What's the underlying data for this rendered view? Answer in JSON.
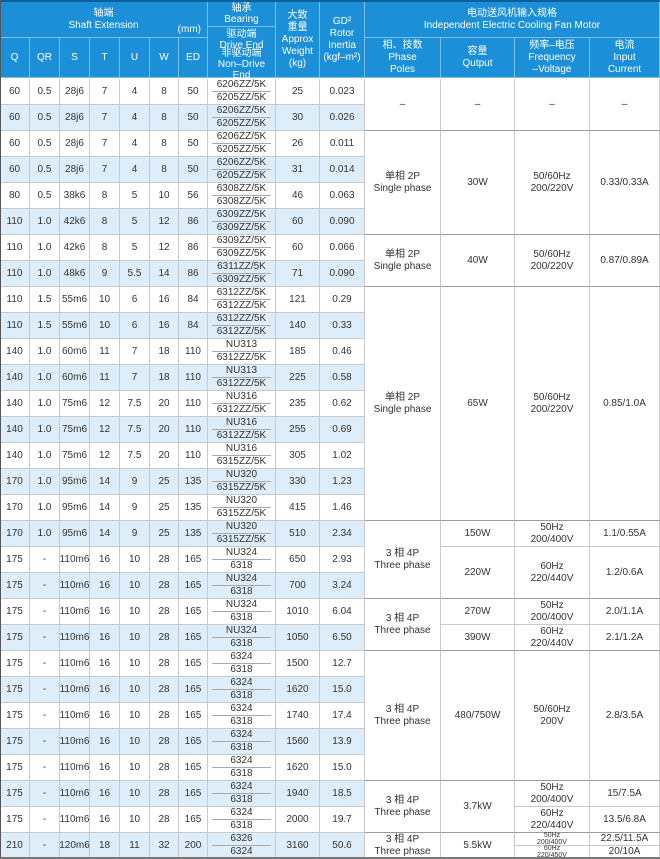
{
  "header": {
    "shaft_cn": "轴端",
    "shaft_en": "Shaft Extension",
    "unit": "(mm)",
    "columns": [
      "Q",
      "QR",
      "S",
      "T",
      "U",
      "W",
      "ED"
    ],
    "bearing_cn": "轴承",
    "bearing_en": "Bearing",
    "drive_cn": "驱动端",
    "drive_en": "Drive End",
    "nondrive_cn": "非驱动端",
    "nondrive_en": "Non–Drive End",
    "weight_cn": [
      "大致",
      "重量"
    ],
    "weight_en": [
      "Approx",
      "Weight",
      "(kg)"
    ],
    "gd2": [
      "GD²",
      "Rotor",
      "Inertia",
      "(kgf–m²)"
    ],
    "motor_cn": "电动送风机输入规格",
    "motor_en": "Independent Electric Cooling Fan Motor",
    "motor_columns": [
      {
        "cn": "相、技数",
        "en": [
          "Phase",
          "Poles"
        ]
      },
      {
        "cn": "容量",
        "en": [
          "Qutput"
        ]
      },
      {
        "cn": "频率–电压",
        "en": [
          "Frequency",
          "–Voltage"
        ]
      },
      {
        "cn": "电流",
        "en": [
          "Input",
          "Current"
        ]
      }
    ]
  },
  "rows": [
    [
      "60",
      "0.5",
      "28j6",
      "7",
      "4",
      "8",
      "50",
      "6206ZZ/5K",
      "6205ZZ/5K",
      "25",
      "0.023"
    ],
    [
      "60",
      "0.5",
      "28j6",
      "7",
      "4",
      "8",
      "50",
      "6206ZZ/5K",
      "6205ZZ/5K",
      "30",
      "0.026"
    ],
    [
      "60",
      "0.5",
      "28j6",
      "7",
      "4",
      "8",
      "50",
      "6206ZZ/5K",
      "6205ZZ/5K",
      "26",
      "0.011"
    ],
    [
      "60",
      "0.5",
      "28j6",
      "7",
      "4",
      "8",
      "50",
      "6206ZZ/5K",
      "6205ZZ/5K",
      "31",
      "0.014"
    ],
    [
      "80",
      "0.5",
      "38k6",
      "8",
      "5",
      "10",
      "56",
      "6308ZZ/5K",
      "6308ZZ/5K",
      "46",
      "0.063"
    ],
    [
      "110",
      "1.0",
      "42k6",
      "8",
      "5",
      "12",
      "86",
      "6309ZZ/5K",
      "6309ZZ/5K",
      "60",
      "0.090"
    ],
    [
      "110",
      "1.0",
      "42k6",
      "8",
      "5",
      "12",
      "86",
      "6309ZZ/5K",
      "6309ZZ/5K",
      "60",
      "0.066"
    ],
    [
      "110",
      "1.0",
      "48k6",
      "9",
      "5.5",
      "14",
      "86",
      "6311ZZ/5K",
      "6309ZZ/5K",
      "71",
      "0.090"
    ],
    [
      "110",
      "1.5",
      "55m6",
      "10",
      "6",
      "16",
      "84",
      "6312ZZ/5K",
      "6312ZZ/5K",
      "121",
      "0.29"
    ],
    [
      "110",
      "1.5",
      "55m6",
      "10",
      "6",
      "16",
      "84",
      "6312ZZ/5K",
      "6312ZZ/5K",
      "140",
      "0.33"
    ],
    [
      "140",
      "1.0",
      "60m6",
      "11",
      "7",
      "18",
      "110",
      "NU313",
      "6312ZZ/5K",
      "185",
      "0.46"
    ],
    [
      "140",
      "1.0",
      "60m6",
      "11",
      "7",
      "18",
      "110",
      "NU313",
      "6312ZZ/5K",
      "225",
      "0.58"
    ],
    [
      "140",
      "1.0",
      "75m6",
      "12",
      "7.5",
      "20",
      "110",
      "NU316",
      "6312ZZ/5K",
      "235",
      "0.62"
    ],
    [
      "140",
      "1.0",
      "75m6",
      "12",
      "7.5",
      "20",
      "110",
      "NU316",
      "6312ZZ/5K",
      "255",
      "0.69"
    ],
    [
      "140",
      "1.0",
      "75m6",
      "12",
      "7.5",
      "20",
      "110",
      "NU316",
      "6315ZZ/5K",
      "305",
      "1.02"
    ],
    [
      "170",
      "1.0",
      "95m6",
      "14",
      "9",
      "25",
      "135",
      "NU320",
      "6315ZZ/5K",
      "330",
      "1.23"
    ],
    [
      "170",
      "1.0",
      "95m6",
      "14",
      "9",
      "25",
      "135",
      "NU320",
      "6315ZZ/5K",
      "415",
      "1.46"
    ],
    [
      "170",
      "1.0",
      "95m6",
      "14",
      "9",
      "25",
      "135",
      "NU320",
      "6315ZZ/5K",
      "510",
      "2.34"
    ],
    [
      "175",
      "-",
      "110m6",
      "16",
      "10",
      "28",
      "165",
      "NU324",
      "6318",
      "650",
      "2.93"
    ],
    [
      "175",
      "-",
      "110m6",
      "16",
      "10",
      "28",
      "165",
      "NU324",
      "6318",
      "700",
      "3.24"
    ],
    [
      "175",
      "-",
      "110m6",
      "16",
      "10",
      "28",
      "165",
      "NU324",
      "6318",
      "1010",
      "6.04"
    ],
    [
      "175",
      "-",
      "110m6",
      "16",
      "10",
      "28",
      "165",
      "NU324",
      "6318",
      "1050",
      "6.50"
    ],
    [
      "175",
      "-",
      "110m6",
      "16",
      "10",
      "28",
      "165",
      "6324",
      "6318",
      "1500",
      "12.7"
    ],
    [
      "175",
      "-",
      "110m6",
      "16",
      "10",
      "28",
      "165",
      "6324",
      "6318",
      "1620",
      "15.0"
    ],
    [
      "175",
      "-",
      "110m6",
      "16",
      "10",
      "28",
      "165",
      "6324",
      "6318",
      "1740",
      "17.4"
    ],
    [
      "175",
      "-",
      "110m6",
      "16",
      "10",
      "28",
      "165",
      "6324",
      "6318",
      "1560",
      "13.9"
    ],
    [
      "175",
      "-",
      "110m6",
      "16",
      "10",
      "28",
      "165",
      "6324",
      "6318",
      "1620",
      "15.0"
    ],
    [
      "175",
      "-",
      "110m6",
      "16",
      "10",
      "28",
      "165",
      "6324",
      "6318",
      "1940",
      "18.5"
    ],
    [
      "175",
      "-",
      "110m6",
      "16",
      "10",
      "28",
      "165",
      "6324",
      "6318",
      "2000",
      "19.7"
    ],
    [
      "210",
      "-",
      "120m6",
      "18",
      "11",
      "32",
      "200",
      "6326",
      "6324",
      "3160",
      "50.6"
    ]
  ],
  "motor_groups": [
    {
      "rows": 2,
      "phase_cn": "–",
      "phase_en": "",
      "output": "–",
      "subs": [
        {
          "rows": 2,
          "freq": "–",
          "voltage": "",
          "current": "–"
        }
      ]
    },
    {
      "rows": 4,
      "phase_cn": "单相 2P",
      "phase_en": "Single phase",
      "output": "30W",
      "subs": [
        {
          "rows": 4,
          "freq": "50/60Hz",
          "voltage": "200/220V",
          "current": "0.33/0.33A"
        }
      ]
    },
    {
      "rows": 2,
      "phase_cn": "单相 2P",
      "phase_en": "Single phase",
      "output": "40W",
      "subs": [
        {
          "rows": 2,
          "freq": "50/60Hz",
          "voltage": "200/220V",
          "current": "0.87/0.89A"
        }
      ]
    },
    {
      "rows": 9,
      "phase_cn": "单相 2P",
      "phase_en": "Single phase",
      "output": "65W",
      "subs": [
        {
          "rows": 9,
          "freq": "50/60Hz",
          "voltage": "200/220V",
          "current": "0.85/1.0A"
        }
      ]
    },
    {
      "rows": 3,
      "phase_cn": "3 相 4P",
      "phase_en": "Three phase",
      "subs": [
        {
          "rows": 1,
          "output": "150W",
          "freq": "50Hz",
          "voltage": "200/400V",
          "current": "1.1/0.55A"
        },
        {
          "rows": 2,
          "output": "220W",
          "freq": "60Hz",
          "voltage": "220/440V",
          "current": "1.2/0.6A"
        }
      ]
    },
    {
      "rows": 2,
      "phase_cn": "3 相 4P",
      "phase_en": "Three phase",
      "subs": [
        {
          "rows": 1,
          "output": "270W",
          "freq": "50Hz",
          "voltage": "200/400V",
          "current": "2.0/1.1A"
        },
        {
          "rows": 1,
          "output": "390W",
          "freq": "60Hz",
          "voltage": "220/440V",
          "current": "2.1/1.2A"
        }
      ]
    },
    {
      "rows": 5,
      "phase_cn": "3 相 4P",
      "phase_en": "Three phase",
      "output": "480/750W",
      "subs": [
        {
          "rows": 5,
          "freq": "50/60Hz",
          "voltage": "200V",
          "current": "2.8/3.5A"
        }
      ]
    },
    {
      "rows": 2,
      "phase_cn": "3 相 4P",
      "phase_en": "Three phase",
      "output": "3.7kW",
      "subs": [
        {
          "rows": 1,
          "freq": "50Hz",
          "voltage": "200/400V",
          "current": "15/7.5A"
        },
        {
          "rows": 1,
          "freq": "60Hz",
          "voltage": "220/440V",
          "current": "13.5/6.8A"
        }
      ]
    },
    {
      "rows": 1,
      "phase_cn": "3 相 4P",
      "phase_en": "Three phase",
      "output": "5.5kW",
      "tiny": true,
      "subs": [
        {
          "rows": 0.5,
          "freq": "50Hz",
          "voltage": "200/400V",
          "current": "22.5/11.5A"
        },
        {
          "rows": 0.5,
          "freq": "60Hz",
          "voltage": "220/450V",
          "current": "20/10A"
        }
      ]
    }
  ],
  "colors": {
    "header_bg": "#1b8fd8",
    "zebra": "#ddedf9",
    "border": "#c9c9c9"
  }
}
